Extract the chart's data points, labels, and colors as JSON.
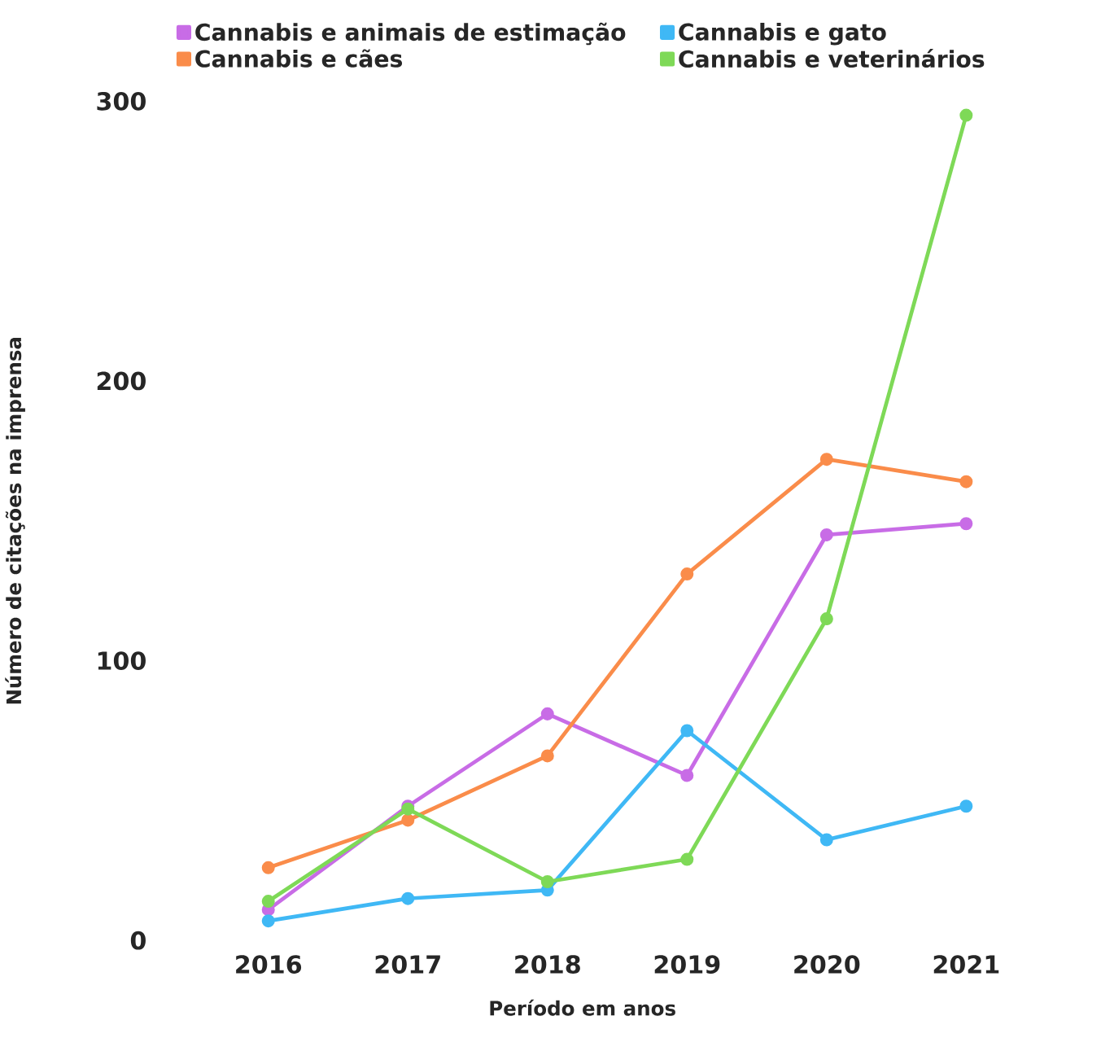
{
  "chart_data": {
    "type": "line",
    "xlabel": "Período em anos",
    "ylabel": "Número de citações  na imprensa",
    "categories": [
      "2016",
      "2017",
      "2018",
      "2019",
      "2020",
      "2021"
    ],
    "series": [
      {
        "name": "Cannabis e animais de estimação",
        "color": "#c86ce6",
        "values": [
          11,
          48,
          81,
          59,
          145,
          149
        ]
      },
      {
        "name": "Cannabis e gato",
        "color": "#3fb8f5",
        "values": [
          7,
          15,
          18,
          75,
          36,
          48
        ]
      },
      {
        "name": "Cannabis e cães",
        "color": "#fa8c4a",
        "values": [
          26,
          43,
          66,
          131,
          172,
          164
        ]
      },
      {
        "name": "Cannabis e veterinários",
        "color": "#7ed957",
        "values": [
          14,
          47,
          21,
          29,
          115,
          295
        ]
      }
    ],
    "ylim": [
      0,
      300
    ],
    "yticks": [
      0,
      100,
      200,
      300
    ],
    "legend": "top",
    "marker": "circle"
  }
}
